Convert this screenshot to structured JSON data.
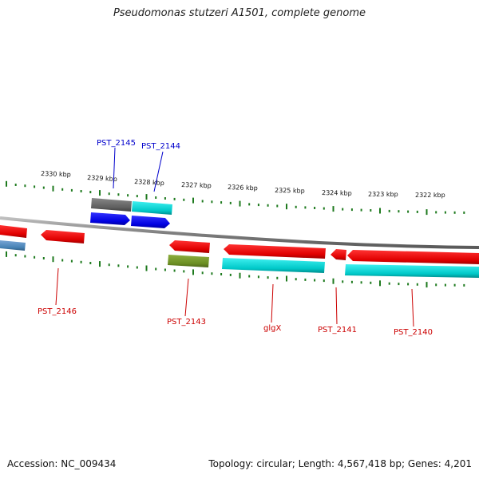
{
  "title": "Pseudomonas stutzeri A1501, complete genome",
  "footer": {
    "accession": "Accession: NC_009434",
    "topology": "Topology: circular; Length: 4,567,418 bp; Genes: 4,201"
  },
  "colors": {
    "backbone": "#8c8c8c",
    "ticks": "#1e7a1e",
    "label_forward": "#0000cc",
    "label_reverse": "#cc0000"
  },
  "scale": {
    "unit": "kbp",
    "labels": [
      "2330 kbp",
      "2329 kbp",
      "2328 kbp",
      "2327 kbp",
      "2326 kbp",
      "2325 kbp",
      "2324 kbp",
      "2323 kbp",
      "2322 kbp"
    ]
  },
  "genes": [
    {
      "id": "PST_2145",
      "label": "PST_2145",
      "color": "#666666",
      "strand": "+"
    },
    {
      "id": "PST_2144",
      "label": "PST_2144",
      "color": "#00e5e5",
      "strand": "+"
    },
    {
      "id": "PST_2146",
      "label": "PST_2146",
      "color": "#ee0000",
      "strand": "-"
    },
    {
      "id": "PST_2143",
      "label": "PST_2143",
      "color": "#ee0000",
      "strand": "-"
    },
    {
      "id": "glgX",
      "label": "glgX",
      "color": "#ee0000",
      "strand": "-"
    },
    {
      "id": "PST_2141",
      "label": "PST_2141",
      "color": "#ee0000",
      "strand": "-"
    },
    {
      "id": "PST_2140",
      "label": "PST_2140",
      "color": "#ee0000",
      "strand": "-"
    }
  ]
}
